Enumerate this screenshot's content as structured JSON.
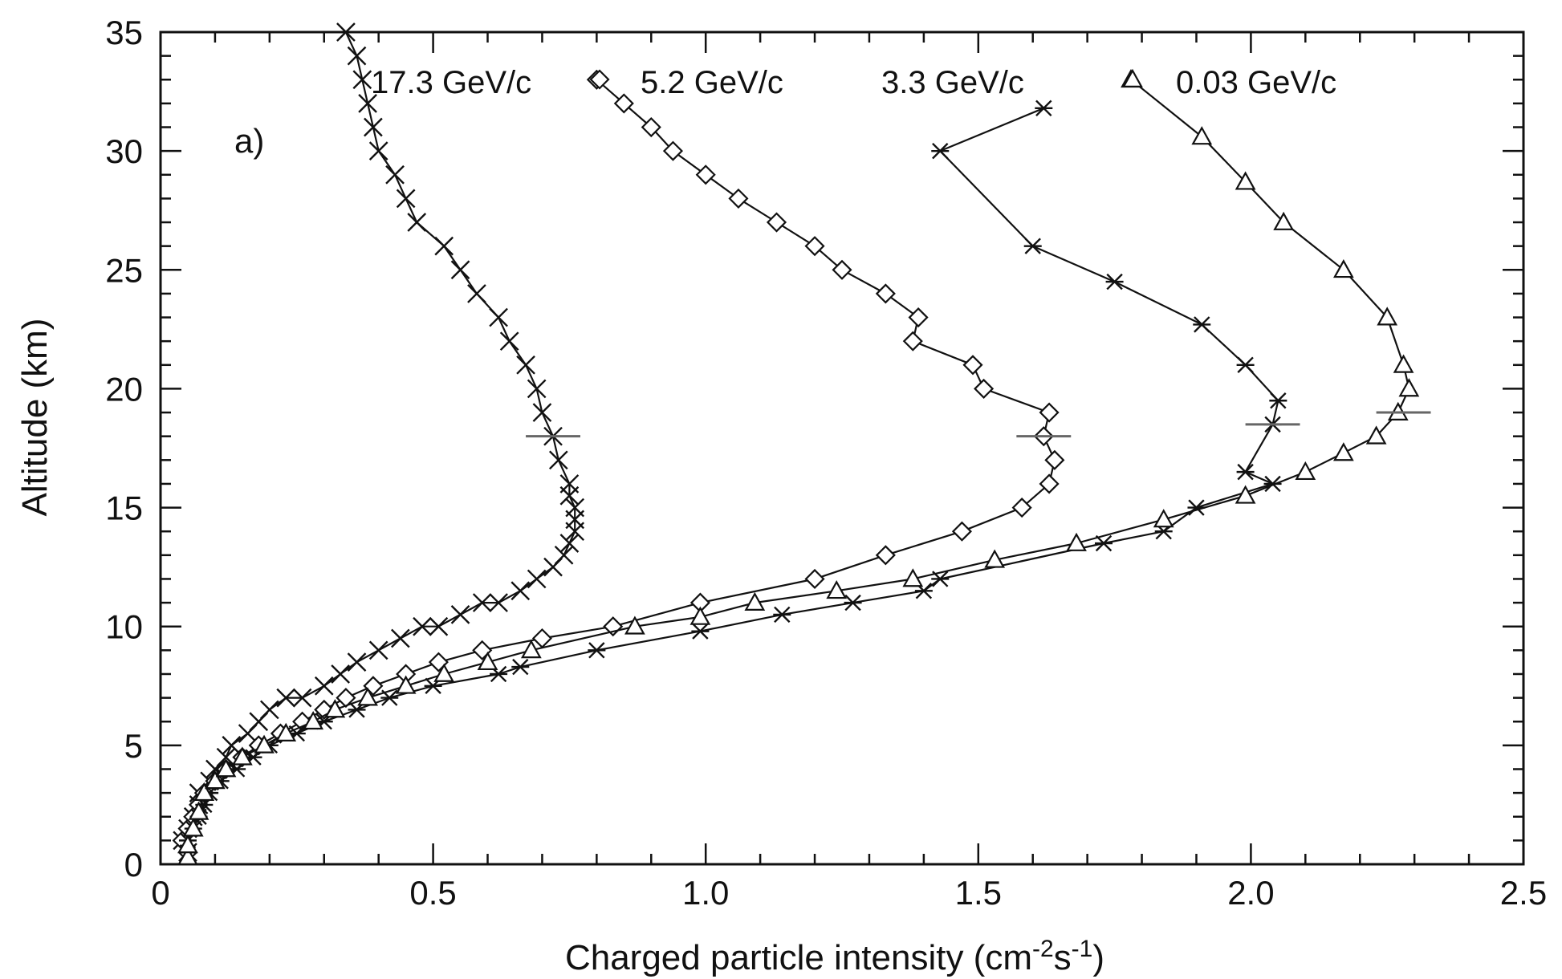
{
  "chart_data": {
    "type": "line",
    "panel_label": "a)",
    "xlabel": {
      "main": "Charged particle intensity (cm",
      "exp1": "-2",
      "mid": "s",
      "exp2": "-1",
      "end": ")"
    },
    "ylabel": "Altitude (km)",
    "xlim": [
      0,
      2.5
    ],
    "ylim": [
      0,
      35
    ],
    "x_ticks": [
      {
        "value": 0,
        "label": "0"
      },
      {
        "value": 0.5,
        "label": "0.5"
      },
      {
        "value": 1.0,
        "label": "1.0"
      },
      {
        "value": 1.5,
        "label": "1.5"
      },
      {
        "value": 2.0,
        "label": "2.0"
      },
      {
        "value": 2.5,
        "label": "2.5"
      }
    ],
    "y_ticks": [
      {
        "value": 0,
        "label": "0"
      },
      {
        "value": 5,
        "label": "5"
      },
      {
        "value": 10,
        "label": "10"
      },
      {
        "value": 15,
        "label": "15"
      },
      {
        "value": 20,
        "label": "20"
      },
      {
        "value": 25,
        "label": "25"
      },
      {
        "value": 30,
        "label": "30"
      },
      {
        "value": 35,
        "label": "35"
      }
    ],
    "grid": false,
    "series": [
      {
        "name": "17.3 GeV/c",
        "marker": "x",
        "points": [
          [
            0.05,
            0.5
          ],
          [
            0.04,
            1
          ],
          [
            0.05,
            1.5
          ],
          [
            0.06,
            2
          ],
          [
            0.07,
            2.5
          ],
          [
            0.07,
            3
          ],
          [
            0.09,
            3.5
          ],
          [
            0.1,
            4
          ],
          [
            0.12,
            4.5
          ],
          [
            0.13,
            5
          ],
          [
            0.16,
            5.5
          ],
          [
            0.18,
            6
          ],
          [
            0.2,
            6.5
          ],
          [
            0.23,
            7
          ],
          [
            0.26,
            7
          ],
          [
            0.3,
            7.5
          ],
          [
            0.33,
            8
          ],
          [
            0.36,
            8.5
          ],
          [
            0.4,
            9
          ],
          [
            0.44,
            9.5
          ],
          [
            0.48,
            10
          ],
          [
            0.51,
            10
          ],
          [
            0.55,
            10.5
          ],
          [
            0.59,
            11
          ],
          [
            0.62,
            11
          ],
          [
            0.66,
            11.5
          ],
          [
            0.69,
            12
          ],
          [
            0.72,
            12.5
          ],
          [
            0.74,
            13
          ],
          [
            0.75,
            13.5
          ],
          [
            0.76,
            14
          ],
          [
            0.76,
            14.5
          ],
          [
            0.76,
            15
          ],
          [
            0.75,
            15.5
          ],
          [
            0.75,
            16
          ],
          [
            0.73,
            17
          ],
          [
            0.72,
            18
          ],
          [
            0.7,
            19
          ],
          [
            0.69,
            20
          ],
          [
            0.67,
            21
          ],
          [
            0.64,
            22
          ],
          [
            0.62,
            23
          ],
          [
            0.58,
            24
          ],
          [
            0.55,
            25
          ],
          [
            0.52,
            26
          ],
          [
            0.47,
            27
          ],
          [
            0.45,
            28
          ],
          [
            0.43,
            29
          ],
          [
            0.4,
            30
          ],
          [
            0.39,
            31
          ],
          [
            0.38,
            32
          ],
          [
            0.37,
            33
          ],
          [
            0.36,
            34
          ],
          [
            0.34,
            35
          ]
        ],
        "error_bar": {
          "x": 0.72,
          "y": 18,
          "half_width": 0.05
        }
      },
      {
        "name": "5.2 GeV/c",
        "marker": "diamond",
        "points": [
          [
            0.05,
            0.5
          ],
          [
            0.04,
            1
          ],
          [
            0.05,
            1.5
          ],
          [
            0.06,
            2
          ],
          [
            0.07,
            2.5
          ],
          [
            0.08,
            3
          ],
          [
            0.1,
            3.5
          ],
          [
            0.12,
            4
          ],
          [
            0.15,
            4.5
          ],
          [
            0.18,
            5
          ],
          [
            0.22,
            5.5
          ],
          [
            0.26,
            6
          ],
          [
            0.3,
            6.5
          ],
          [
            0.34,
            7
          ],
          [
            0.39,
            7.5
          ],
          [
            0.45,
            8
          ],
          [
            0.51,
            8.5
          ],
          [
            0.59,
            9
          ],
          [
            0.7,
            9.5
          ],
          [
            0.83,
            10
          ],
          [
            0.99,
            11
          ],
          [
            1.2,
            12
          ],
          [
            1.33,
            13
          ],
          [
            1.47,
            14
          ],
          [
            1.58,
            15
          ],
          [
            1.63,
            16
          ],
          [
            1.64,
            17
          ],
          [
            1.62,
            18
          ],
          [
            1.63,
            19
          ],
          [
            1.51,
            20
          ],
          [
            1.49,
            21
          ],
          [
            1.38,
            22
          ],
          [
            1.39,
            23
          ],
          [
            1.33,
            24
          ],
          [
            1.25,
            25
          ],
          [
            1.2,
            26
          ],
          [
            1.13,
            27
          ],
          [
            1.06,
            28
          ],
          [
            1.0,
            29
          ],
          [
            0.94,
            30
          ],
          [
            0.9,
            31
          ],
          [
            0.85,
            32
          ],
          [
            0.8,
            33
          ]
        ],
        "error_bar": {
          "x": 1.62,
          "y": 18,
          "half_width": 0.05
        }
      },
      {
        "name": "3.3 GeV/c",
        "marker": "asterisk",
        "points": [
          [
            0.05,
            0.5
          ],
          [
            0.05,
            1
          ],
          [
            0.06,
            1.5
          ],
          [
            0.07,
            2
          ],
          [
            0.08,
            2.5
          ],
          [
            0.09,
            3
          ],
          [
            0.11,
            3.5
          ],
          [
            0.14,
            4
          ],
          [
            0.17,
            4.5
          ],
          [
            0.2,
            5
          ],
          [
            0.25,
            5.5
          ],
          [
            0.3,
            6
          ],
          [
            0.36,
            6.5
          ],
          [
            0.42,
            7
          ],
          [
            0.5,
            7.5
          ],
          [
            0.62,
            8
          ],
          [
            0.66,
            8.3
          ],
          [
            0.8,
            9
          ],
          [
            0.99,
            9.8
          ],
          [
            1.14,
            10.5
          ],
          [
            1.27,
            11
          ],
          [
            1.4,
            11.5
          ],
          [
            1.43,
            12
          ],
          [
            1.73,
            13.5
          ],
          [
            1.84,
            14
          ],
          [
            1.9,
            15
          ],
          [
            2.04,
            16
          ],
          [
            1.99,
            16.5
          ],
          [
            2.04,
            18.5
          ],
          [
            2.05,
            19.5
          ],
          [
            1.99,
            21
          ],
          [
            1.91,
            22.7
          ],
          [
            1.75,
            24.5
          ],
          [
            1.6,
            26
          ],
          [
            1.43,
            30
          ],
          [
            1.62,
            31.8
          ]
        ],
        "error_bar": {
          "x": 2.04,
          "y": 18.5,
          "half_width": 0.05
        }
      },
      {
        "name": "0.03 GeV/c",
        "marker": "triangle",
        "points": [
          [
            0.05,
            0.3
          ],
          [
            0.05,
            0.8
          ],
          [
            0.06,
            1.5
          ],
          [
            0.07,
            2.2
          ],
          [
            0.08,
            3
          ],
          [
            0.1,
            3.5
          ],
          [
            0.12,
            4
          ],
          [
            0.15,
            4.5
          ],
          [
            0.19,
            5
          ],
          [
            0.23,
            5.5
          ],
          [
            0.28,
            6
          ],
          [
            0.32,
            6.5
          ],
          [
            0.38,
            7
          ],
          [
            0.45,
            7.5
          ],
          [
            0.52,
            8
          ],
          [
            0.6,
            8.5
          ],
          [
            0.68,
            9
          ],
          [
            0.87,
            10
          ],
          [
            0.99,
            10.4
          ],
          [
            1.09,
            11
          ],
          [
            1.24,
            11.5
          ],
          [
            1.38,
            12
          ],
          [
            1.53,
            12.8
          ],
          [
            1.68,
            13.5
          ],
          [
            1.84,
            14.5
          ],
          [
            1.99,
            15.5
          ],
          [
            2.1,
            16.5
          ],
          [
            2.17,
            17.3
          ],
          [
            2.23,
            18
          ],
          [
            2.27,
            19
          ],
          [
            2.29,
            20
          ],
          [
            2.28,
            21
          ],
          [
            2.25,
            23
          ],
          [
            2.17,
            25
          ],
          [
            2.06,
            27
          ],
          [
            1.99,
            28.7
          ],
          [
            1.91,
            30.6
          ],
          [
            1.78,
            33
          ]
        ],
        "error_bar": {
          "x": 2.28,
          "y": 19,
          "half_width": 0.05
        }
      }
    ]
  }
}
